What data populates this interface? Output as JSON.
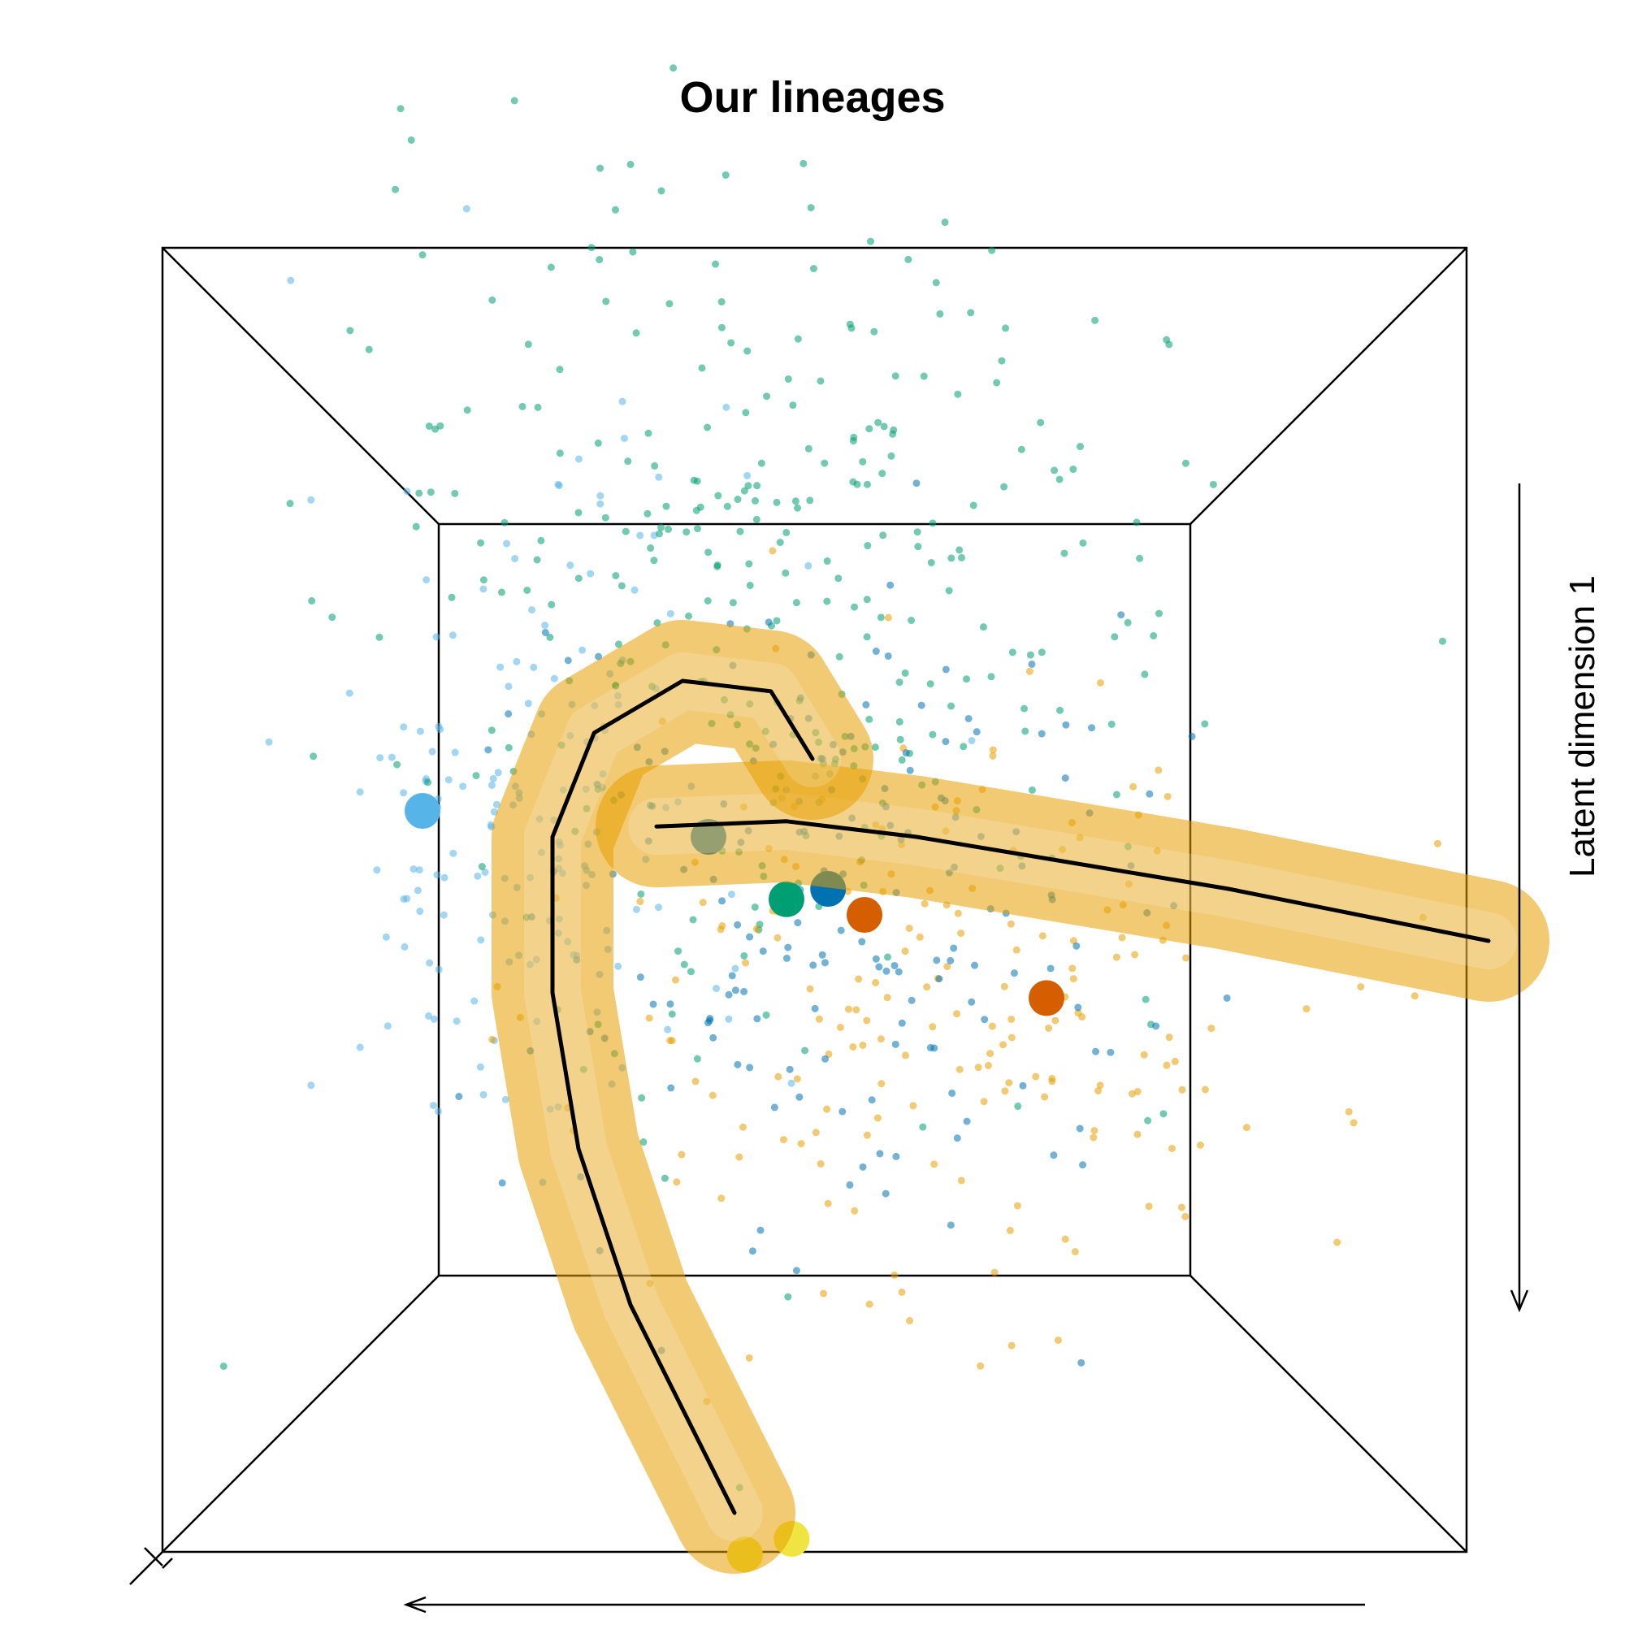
{
  "chart_data": {
    "type": "scatter",
    "title": "Our lineages",
    "ylabel": "Latent dimension 1",
    "xlabel": "",
    "projection": "3d-box-viewed-head-on",
    "grid": false,
    "legend": "none",
    "colors": {
      "sky_blue": "#56B4E9",
      "bluish_green": "#009E73",
      "orange": "#E69F00",
      "blue": "#0072B2",
      "yellow": "#F0E442",
      "dark_orange": "#D55E00",
      "curve": "#000000"
    },
    "cell_groups": [
      {
        "color": "sky_blue",
        "region": "left"
      },
      {
        "color": "bluish_green",
        "region": "upper-left"
      },
      {
        "color": "orange",
        "region": "right"
      },
      {
        "color": "blue",
        "region": "center"
      }
    ],
    "cluster_centers": [
      {
        "color": "sky_blue",
        "x": -0.75,
        "y": 0.05
      },
      {
        "color": "blue",
        "x": -0.2,
        "y": 0.0
      },
      {
        "color": "blue",
        "x": 0.03,
        "y": -0.1
      },
      {
        "color": "bluish_green",
        "x": -0.05,
        "y": -0.12
      },
      {
        "color": "dark_orange",
        "x": 0.1,
        "y": -0.15
      },
      {
        "color": "dark_orange",
        "x": 0.45,
        "y": -0.31
      },
      {
        "color": "yellow",
        "x": -0.13,
        "y": -1.38
      },
      {
        "color": "yellow",
        "x": -0.04,
        "y": -1.35
      }
    ],
    "lineages": [
      {
        "tube_color": "orange",
        "points": [
          [
            -0.3,
            0.02
          ],
          [
            -0.05,
            0.03
          ],
          [
            0.2,
            0.0
          ],
          [
            0.5,
            -0.05
          ],
          [
            0.8,
            -0.1
          ],
          [
            1.3,
            -0.2
          ]
        ]
      },
      {
        "tube_color": "orange",
        "points": [
          [
            0.0,
            0.15
          ],
          [
            -0.08,
            0.28
          ],
          [
            -0.25,
            0.3
          ],
          [
            -0.42,
            0.2
          ],
          [
            -0.5,
            0.0
          ],
          [
            -0.5,
            -0.3
          ],
          [
            -0.45,
            -0.6
          ],
          [
            -0.35,
            -0.9
          ],
          [
            -0.2,
            -1.2
          ],
          [
            -0.15,
            -1.3
          ]
        ]
      }
    ]
  }
}
